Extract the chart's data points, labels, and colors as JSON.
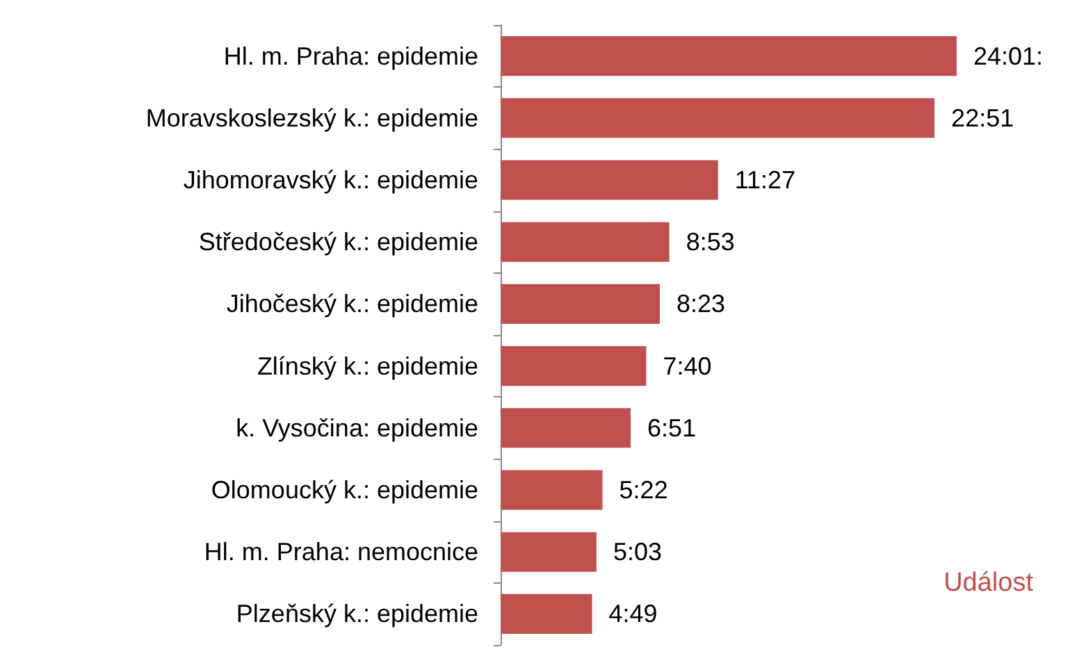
{
  "chart_data": {
    "type": "bar",
    "orientation": "horizontal",
    "categories": [
      "Hl. m. Praha: epidemie",
      "Moravskoslezský k.: epidemie",
      "Jihomoravský k.: epidemie",
      "Středočeský k.: epidemie",
      "Jihočeský k.: epidemie",
      "Zlínský k.: epidemie",
      "k. Vysočina: epidemie",
      "Olomoucký k.: epidemie",
      "Hl. m. Praha: nemocnice",
      "Plzeňský k.: epidemie"
    ],
    "values": [
      24.017,
      22.85,
      11.45,
      8.883,
      8.383,
      7.667,
      6.85,
      5.367,
      5.05,
      4.817
    ],
    "value_labels": [
      "24:01:",
      "22:51",
      "11:27",
      "8:53",
      "8:23",
      "7:40",
      "6:51",
      "5:22",
      "5:03",
      "4:49"
    ],
    "color": "#c0504d",
    "annotations": [
      "Událost"
    ]
  }
}
